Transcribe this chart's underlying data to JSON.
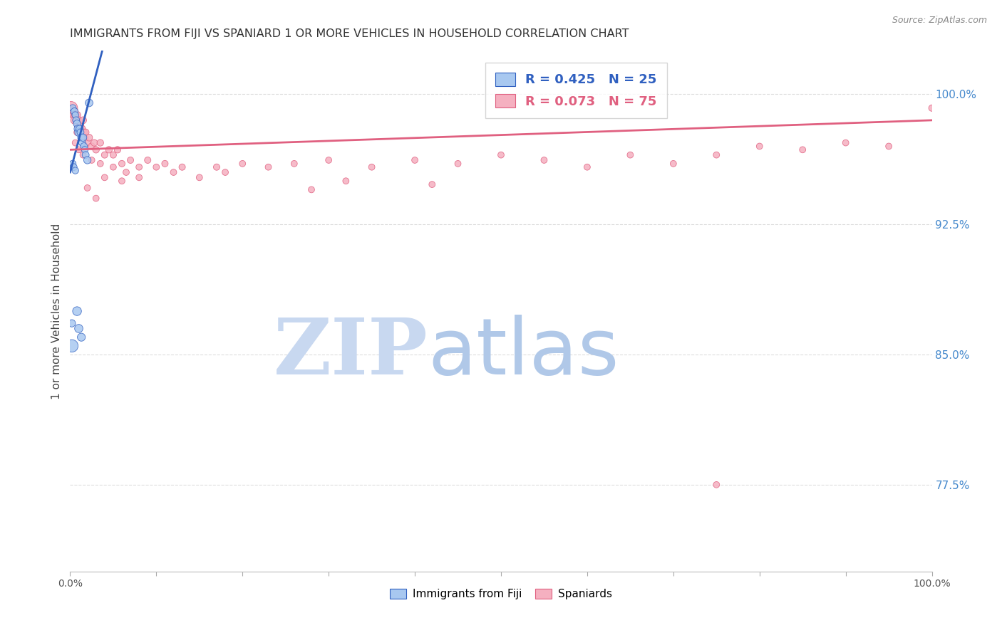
{
  "title": "IMMIGRANTS FROM FIJI VS SPANIARD 1 OR MORE VEHICLES IN HOUSEHOLD CORRELATION CHART",
  "source": "Source: ZipAtlas.com",
  "ylabel": "1 or more Vehicles in Household",
  "yaxis_labels": [
    "100.0%",
    "92.5%",
    "85.0%",
    "77.5%"
  ],
  "yaxis_values": [
    1.0,
    0.925,
    0.85,
    0.775
  ],
  "xlim": [
    0.0,
    1.0
  ],
  "ylim": [
    0.725,
    1.025
  ],
  "fiji_R": 0.425,
  "fiji_N": 25,
  "spaniard_R": 0.073,
  "spaniard_N": 75,
  "fiji_color": "#A8C8F0",
  "spaniard_color": "#F5B0C0",
  "fiji_line_color": "#3060C0",
  "spaniard_line_color": "#E06080",
  "background_color": "#ffffff",
  "grid_color": "#DDDDDD",
  "title_color": "#333333",
  "right_axis_color": "#4488CC",
  "watermark_zip_color": "#C8D8F0",
  "watermark_atlas_color": "#B0C8E8",
  "fiji_x": [
    0.003,
    0.005,
    0.006,
    0.007,
    0.008,
    0.009,
    0.01,
    0.011,
    0.012,
    0.013,
    0.014,
    0.015,
    0.016,
    0.017,
    0.018,
    0.02,
    0.022,
    0.003,
    0.004,
    0.006,
    0.008,
    0.01,
    0.013,
    0.002,
    0.002
  ],
  "fiji_y": [
    0.992,
    0.99,
    0.988,
    0.985,
    0.983,
    0.98,
    0.978,
    0.98,
    0.978,
    0.975,
    0.972,
    0.975,
    0.97,
    0.968,
    0.965,
    0.962,
    0.995,
    0.96,
    0.958,
    0.956,
    0.875,
    0.865,
    0.86,
    0.868,
    0.855
  ],
  "fiji_sizes": [
    50,
    55,
    45,
    50,
    55,
    60,
    65,
    55,
    50,
    55,
    50,
    55,
    50,
    45,
    50,
    55,
    60,
    45,
    50,
    45,
    80,
    70,
    65,
    55,
    160
  ],
  "spaniard_x": [
    0.001,
    0.002,
    0.003,
    0.004,
    0.005,
    0.005,
    0.006,
    0.007,
    0.008,
    0.009,
    0.01,
    0.011,
    0.012,
    0.013,
    0.014,
    0.015,
    0.016,
    0.017,
    0.018,
    0.02,
    0.022,
    0.025,
    0.028,
    0.03,
    0.035,
    0.04,
    0.045,
    0.05,
    0.055,
    0.06,
    0.07,
    0.08,
    0.09,
    0.1,
    0.11,
    0.12,
    0.13,
    0.15,
    0.17,
    0.2,
    0.23,
    0.26,
    0.3,
    0.35,
    0.4,
    0.45,
    0.5,
    0.55,
    0.6,
    0.65,
    0.7,
    0.75,
    0.8,
    0.85,
    0.9,
    0.95,
    1.0,
    0.32,
    0.18,
    0.42,
    0.28,
    0.06,
    0.04,
    0.02,
    0.03,
    0.008,
    0.006,
    0.01,
    0.015,
    0.025,
    0.035,
    0.05,
    0.065,
    0.08,
    0.75
  ],
  "spaniard_y": [
    0.992,
    0.99,
    0.99,
    0.988,
    0.99,
    0.985,
    0.988,
    0.985,
    0.988,
    0.982,
    0.985,
    0.98,
    0.982,
    0.978,
    0.98,
    0.985,
    0.978,
    0.975,
    0.978,
    0.972,
    0.975,
    0.97,
    0.972,
    0.968,
    0.972,
    0.965,
    0.968,
    0.965,
    0.968,
    0.96,
    0.962,
    0.958,
    0.962,
    0.958,
    0.96,
    0.955,
    0.958,
    0.952,
    0.958,
    0.96,
    0.958,
    0.96,
    0.962,
    0.958,
    0.962,
    0.96,
    0.965,
    0.962,
    0.958,
    0.965,
    0.96,
    0.965,
    0.97,
    0.968,
    0.972,
    0.97,
    0.992,
    0.95,
    0.955,
    0.948,
    0.945,
    0.95,
    0.952,
    0.946,
    0.94,
    0.978,
    0.972,
    0.968,
    0.965,
    0.962,
    0.96,
    0.958,
    0.955,
    0.952,
    0.775
  ],
  "spaniard_sizes": [
    180,
    100,
    80,
    65,
    55,
    60,
    55,
    50,
    55,
    50,
    50,
    50,
    48,
    48,
    48,
    50,
    48,
    45,
    48,
    45,
    48,
    45,
    45,
    45,
    45,
    42,
    45,
    42,
    45,
    42,
    42,
    40,
    42,
    40,
    42,
    40,
    42,
    40,
    42,
    40,
    40,
    40,
    40,
    40,
    40,
    40,
    40,
    40,
    40,
    40,
    40,
    40,
    40,
    40,
    40,
    40,
    42,
    40,
    40,
    40,
    40,
    40,
    40,
    40,
    40,
    40,
    40,
    40,
    40,
    40,
    40,
    40,
    40,
    40,
    40
  ],
  "fiji_line_x": [
    0.0,
    0.025
  ],
  "fiji_line_y_start": 0.955,
  "fiji_line_y_end": 1.002,
  "spaniard_line_x": [
    0.0,
    1.0
  ],
  "spaniard_line_y_start": 0.968,
  "spaniard_line_y_end": 0.985
}
